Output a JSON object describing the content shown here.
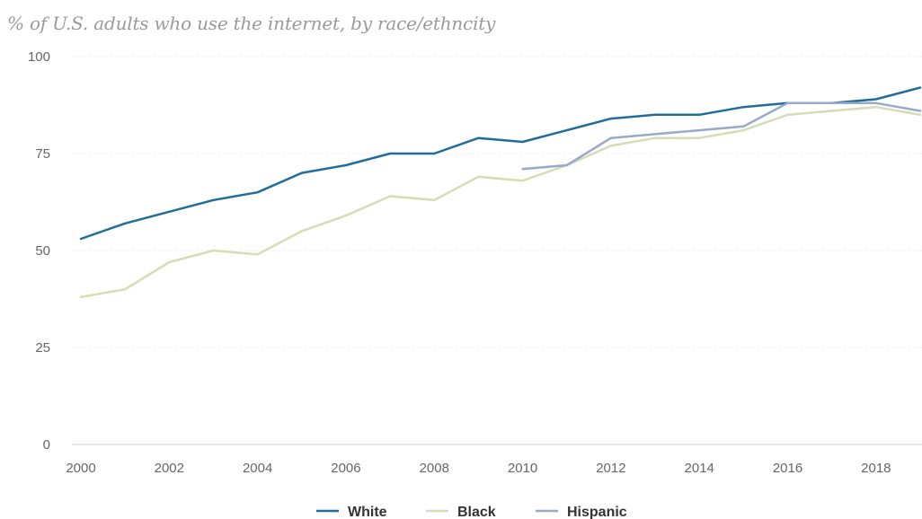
{
  "chart_data": {
    "type": "line",
    "title": "% of U.S. adults who use the internet, by race/ethncity",
    "xlabel": "",
    "ylabel": "",
    "xlim": [
      2000,
      2019
    ],
    "ylim": [
      0,
      100
    ],
    "y_ticks": [
      0,
      25,
      50,
      75,
      100
    ],
    "x_ticks": [
      2000,
      2002,
      2004,
      2006,
      2008,
      2010,
      2012,
      2014,
      2016,
      2018
    ],
    "grid": true,
    "legend_position": "bottom",
    "series": [
      {
        "name": "White",
        "color": "#1f6d98",
        "points": [
          [
            2000,
            53
          ],
          [
            2001,
            57
          ],
          [
            2002,
            60
          ],
          [
            2003,
            63
          ],
          [
            2004,
            65
          ],
          [
            2005,
            70
          ],
          [
            2006,
            72
          ],
          [
            2007,
            75
          ],
          [
            2008,
            75
          ],
          [
            2009,
            79
          ],
          [
            2010,
            78
          ],
          [
            2011,
            81
          ],
          [
            2012,
            84
          ],
          [
            2013,
            85
          ],
          [
            2014,
            85
          ],
          [
            2015,
            87
          ],
          [
            2016,
            88
          ],
          [
            2017,
            88
          ],
          [
            2018,
            89
          ],
          [
            2019,
            92
          ]
        ]
      },
      {
        "name": "Black",
        "color": "#d6dcb4",
        "points": [
          [
            2000,
            38
          ],
          [
            2001,
            40
          ],
          [
            2002,
            47
          ],
          [
            2003,
            50
          ],
          [
            2004,
            49
          ],
          [
            2005,
            55
          ],
          [
            2006,
            59
          ],
          [
            2007,
            64
          ],
          [
            2008,
            63
          ],
          [
            2009,
            69
          ],
          [
            2010,
            68
          ],
          [
            2011,
            72
          ],
          [
            2012,
            77
          ],
          [
            2013,
            79
          ],
          [
            2014,
            79
          ],
          [
            2015,
            81
          ],
          [
            2016,
            85
          ],
          [
            2017,
            86
          ],
          [
            2018,
            87
          ],
          [
            2019,
            85
          ]
        ]
      },
      {
        "name": "Hispanic",
        "color": "#97aac8",
        "points": [
          [
            2010,
            71
          ],
          [
            2011,
            72
          ],
          [
            2012,
            79
          ],
          [
            2013,
            80
          ],
          [
            2014,
            81
          ],
          [
            2015,
            82
          ],
          [
            2016,
            88
          ],
          [
            2017,
            88
          ],
          [
            2018,
            88
          ],
          [
            2019,
            86
          ]
        ]
      }
    ]
  }
}
